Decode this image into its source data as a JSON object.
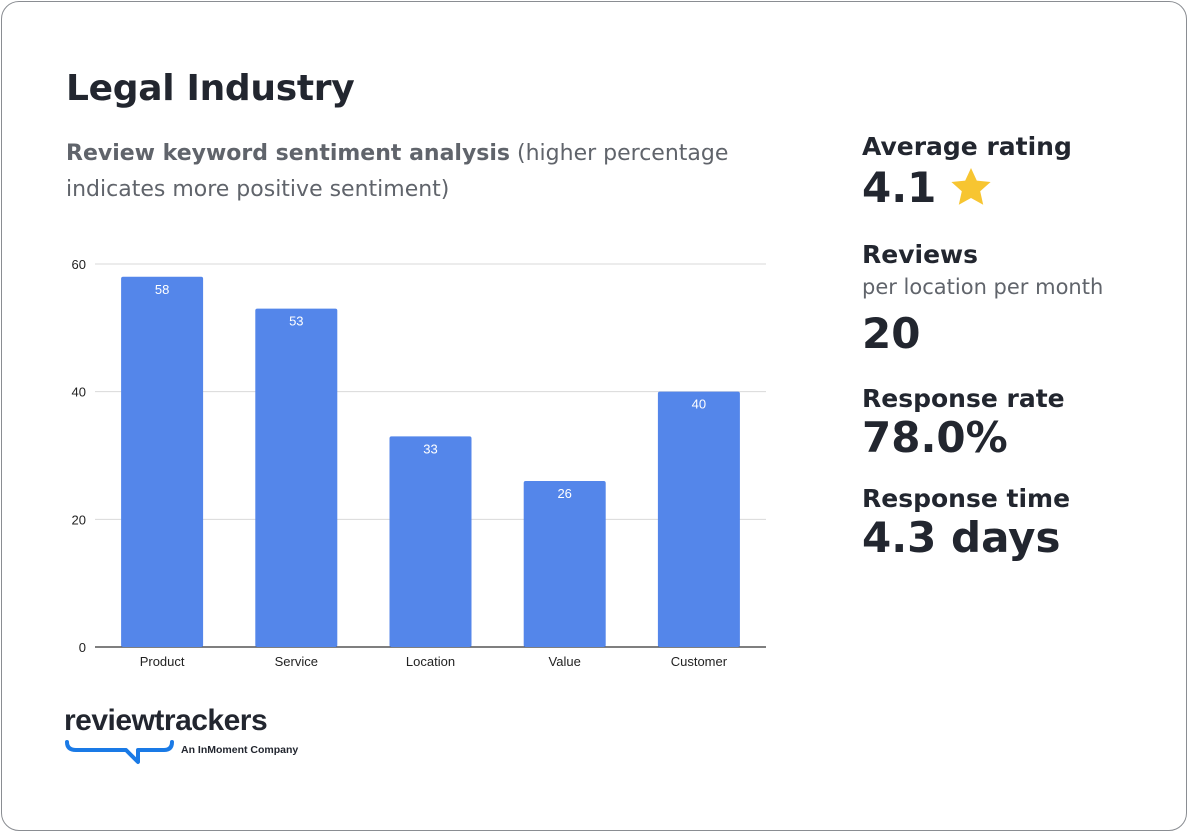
{
  "title": "Legal Industry",
  "subtitle_bold": "Review keyword sentiment analysis",
  "subtitle_rest": " (higher percentage indicates more positive sentiment)",
  "stats": {
    "avg_rating_label": "Average rating",
    "avg_rating_value": "4.1",
    "reviews_label": "Reviews",
    "reviews_sub": "per location per month",
    "reviews_value": "20",
    "response_rate_label": "Response rate",
    "response_rate_value": "78.0%",
    "response_time_label": "Response time",
    "response_time_value": "4.3 days"
  },
  "logo": {
    "wordmark": "reviewtrackers",
    "tagline": "An InMoment Company"
  },
  "colors": {
    "bar": "#5486ea",
    "star": "#f7c531",
    "logo_blue": "#1a7ae6"
  },
  "chart_data": {
    "type": "bar",
    "categories": [
      "Product",
      "Service",
      "Location",
      "Value",
      "Customer"
    ],
    "values": [
      58,
      53,
      33,
      26,
      40
    ],
    "ylim": [
      0,
      60
    ],
    "yticks": [
      0,
      20,
      40,
      60
    ],
    "grid": true,
    "data_labels": true
  }
}
